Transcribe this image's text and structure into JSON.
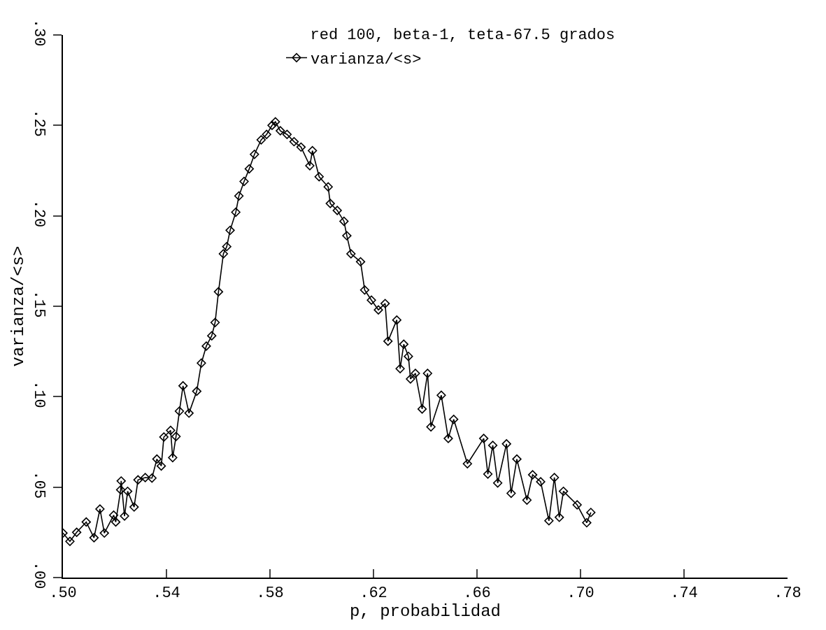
{
  "chart_data": {
    "type": "line",
    "title": "red 100, beta-1, teta-67.5 grados",
    "xlabel": "p, probabilidad",
    "ylabel": "varianza/<s>",
    "xlim": [
      0.5,
      0.78
    ],
    "ylim": [
      0,
      0.3
    ],
    "xticks": [
      {
        "value": 0.5,
        "label": ".50"
      },
      {
        "value": 0.54,
        "label": ".54"
      },
      {
        "value": 0.58,
        "label": ".58"
      },
      {
        "value": 0.62,
        "label": ".62"
      },
      {
        "value": 0.66,
        "label": ".66"
      },
      {
        "value": 0.7,
        "label": ".70"
      },
      {
        "value": 0.74,
        "label": ".74"
      },
      {
        "value": 0.78,
        "label": ".78"
      }
    ],
    "yticks": [
      {
        "value": 0,
        "label": ".00"
      },
      {
        "value": 0.05,
        "label": ".05"
      },
      {
        "value": 0.1,
        "label": ".10"
      },
      {
        "value": 0.15,
        "label": ".15"
      },
      {
        "value": 0.2,
        "label": ".20"
      },
      {
        "value": 0.25,
        "label": ".25"
      },
      {
        "value": 0.3,
        "label": ".30"
      }
    ],
    "legend": "top",
    "marker": "diamond",
    "line_style": "solid",
    "series": [
      {
        "name": "varianza/<s>",
        "color": "#000000",
        "x": [
          0.5,
          0.5027,
          0.5053,
          0.509,
          0.512,
          0.5143,
          0.516,
          0.5196,
          0.5204,
          0.5223,
          0.5225,
          0.5238,
          0.525,
          0.5275,
          0.529,
          0.5318,
          0.5344,
          0.5363,
          0.538,
          0.539,
          0.5416,
          0.5424,
          0.5437,
          0.545,
          0.5464,
          0.5487,
          0.5517,
          0.5535,
          0.5554,
          0.5575,
          0.5588,
          0.5601,
          0.562,
          0.5633,
          0.5646,
          0.5668,
          0.568,
          0.57,
          0.572,
          0.574,
          0.5766,
          0.5787,
          0.5808,
          0.5821,
          0.584,
          0.5866,
          0.5893,
          0.592,
          0.5954,
          0.5964,
          0.599,
          0.6025,
          0.6033,
          0.606,
          0.6086,
          0.6097,
          0.6113,
          0.615,
          0.6166,
          0.6192,
          0.6219,
          0.6245,
          0.6256,
          0.629,
          0.6303,
          0.6317,
          0.6335,
          0.6343,
          0.6362,
          0.6388,
          0.6409,
          0.6422,
          0.6462,
          0.6489,
          0.651,
          0.6563,
          0.6626,
          0.6642,
          0.6661,
          0.668,
          0.6714,
          0.6732,
          0.6754,
          0.6793,
          0.6815,
          0.6846,
          0.6878,
          0.6899,
          0.6918,
          0.6934,
          0.6987,
          0.7024,
          0.704
        ],
        "values": [
          0.0246,
          0.02,
          0.025,
          0.0307,
          0.022,
          0.0379,
          0.0246,
          0.0345,
          0.0307,
          0.0485,
          0.0534,
          0.034,
          0.0477,
          0.039,
          0.054,
          0.0553,
          0.055,
          0.0655,
          0.0617,
          0.0777,
          0.0814,
          0.0663,
          0.078,
          0.092,
          0.106,
          0.0909,
          0.103,
          0.1186,
          0.128,
          0.1337,
          0.141,
          0.158,
          0.179,
          0.183,
          0.192,
          0.202,
          0.211,
          0.219,
          0.226,
          0.234,
          0.242,
          0.245,
          0.25,
          0.252,
          0.247,
          0.245,
          0.241,
          0.238,
          0.2277,
          0.236,
          0.2216,
          0.216,
          0.2068,
          0.203,
          0.197,
          0.189,
          0.179,
          0.1746,
          0.159,
          0.1534,
          0.148,
          0.1515,
          0.1307,
          0.1424,
          0.1155,
          0.129,
          0.1223,
          0.1098,
          0.1129,
          0.0932,
          0.1129,
          0.0833,
          0.1008,
          0.0769,
          0.0875,
          0.0629,
          0.0769,
          0.0572,
          0.0731,
          0.0523,
          0.0739,
          0.0466,
          0.0655,
          0.0428,
          0.0568,
          0.053,
          0.0314,
          0.0553,
          0.0333,
          0.0477,
          0.0402,
          0.0303,
          0.036
        ]
      }
    ]
  }
}
